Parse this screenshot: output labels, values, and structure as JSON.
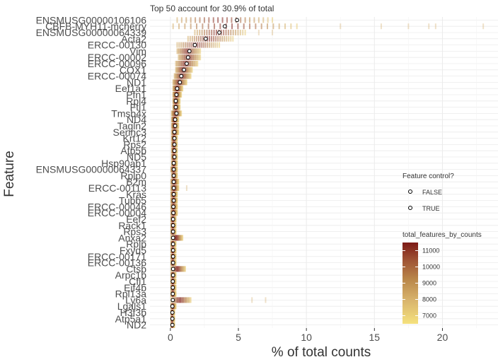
{
  "chart_data": {
    "type": "scatter",
    "title": "Top 50 account for 30.9% of total",
    "xlabel": "% of total counts",
    "ylabel": "Feature",
    "xlim": [
      -1.5,
      24.5
    ],
    "xticks": [
      0,
      5,
      10,
      15,
      20
    ],
    "grid": true,
    "features": [
      {
        "name": "ENSMUSG00000106106",
        "mean": 4.9,
        "range": [
          0.5,
          7.5
        ],
        "tail": []
      },
      {
        "name": "CBFB-MYH11-mcherry",
        "mean": 4.0,
        "range": [
          0.2,
          9.3
        ],
        "tail": [
          12.5,
          15.5,
          17.5,
          19.0,
          19.5,
          23.0
        ]
      },
      {
        "name": "ENSMUSG00000064339",
        "mean": 3.6,
        "range": [
          1.8,
          5.5
        ],
        "tail": [
          6.5,
          7.5
        ]
      },
      {
        "name": "Acta2",
        "mean": 2.6,
        "range": [
          1.3,
          4.6
        ],
        "tail": []
      },
      {
        "name": "ERCC-00130",
        "mean": 1.8,
        "range": [
          0.5,
          3.6
        ],
        "tail": []
      },
      {
        "name": "Vim",
        "mean": 1.4,
        "range": [
          0.5,
          2.2
        ],
        "tail": []
      },
      {
        "name": "ERCC-00002",
        "mean": 1.3,
        "range": [
          0.6,
          2.2
        ],
        "tail": []
      },
      {
        "name": "ERCC-00096",
        "mean": 1.2,
        "range": [
          0.4,
          2.0
        ],
        "tail": []
      },
      {
        "name": "COX1",
        "mean": 1.0,
        "range": [
          0.4,
          1.6
        ],
        "tail": []
      },
      {
        "name": "ERCC-00074",
        "mean": 0.8,
        "range": [
          0.3,
          1.5
        ],
        "tail": []
      },
      {
        "name": "ND1",
        "mean": 0.7,
        "range": [
          0.2,
          1.2
        ],
        "tail": []
      },
      {
        "name": "Eef1a1",
        "mean": 0.5,
        "range": [
          0.2,
          0.9
        ],
        "tail": []
      },
      {
        "name": "Pfn1",
        "mean": 0.45,
        "range": [
          0.2,
          0.8
        ],
        "tail": []
      },
      {
        "name": "Rpl4",
        "mean": 0.4,
        "range": [
          0.2,
          0.7
        ],
        "tail": []
      },
      {
        "name": "Ftl1",
        "mean": 0.4,
        "range": [
          0.2,
          0.7
        ],
        "tail": []
      },
      {
        "name": "Tmsb4x",
        "mean": 0.45,
        "range": [
          0.1,
          0.8
        ],
        "tail": []
      },
      {
        "name": "ND4",
        "mean": 0.35,
        "range": [
          0.1,
          0.6
        ],
        "tail": []
      },
      {
        "name": "Tagln2",
        "mean": 0.35,
        "range": [
          0.1,
          0.6
        ],
        "tail": []
      },
      {
        "name": "Serinc3",
        "mean": 0.3,
        "range": [
          0.1,
          0.6
        ],
        "tail": []
      },
      {
        "name": "Krt12",
        "mean": 0.3,
        "range": [
          0.1,
          0.5
        ],
        "tail": []
      },
      {
        "name": "Rps2",
        "mean": 0.3,
        "range": [
          0.1,
          0.5
        ],
        "tail": []
      },
      {
        "name": "Atp5b",
        "mean": 0.3,
        "range": [
          0.1,
          0.5
        ],
        "tail": []
      },
      {
        "name": "ND5",
        "mean": 0.3,
        "range": [
          0.1,
          0.5
        ],
        "tail": []
      },
      {
        "name": "Hsp90ab1",
        "mean": 0.25,
        "range": [
          0.1,
          0.5
        ],
        "tail": []
      },
      {
        "name": "ENSMUSG00000064337",
        "mean": 0.25,
        "range": [
          0.05,
          0.5
        ],
        "tail": []
      },
      {
        "name": "Rplp0",
        "mean": 0.25,
        "range": [
          0.1,
          0.5
        ],
        "tail": []
      },
      {
        "name": "B2m",
        "mean": 0.25,
        "range": [
          0.05,
          0.6
        ],
        "tail": []
      },
      {
        "name": "ERCC-00113",
        "mean": 0.25,
        "range": [
          0.05,
          0.6
        ],
        "tail": [
          1.2
        ]
      },
      {
        "name": "Kras",
        "mean": 0.25,
        "range": [
          0.05,
          0.5
        ],
        "tail": []
      },
      {
        "name": "Tubb5",
        "mean": 0.25,
        "range": [
          0.05,
          0.5
        ],
        "tail": []
      },
      {
        "name": "ERCC-00046",
        "mean": 0.22,
        "range": [
          0.05,
          0.5
        ],
        "tail": []
      },
      {
        "name": "ERCC-00004",
        "mean": 0.22,
        "range": [
          0.05,
          0.5
        ],
        "tail": []
      },
      {
        "name": "Eef2",
        "mean": 0.2,
        "range": [
          0.05,
          0.4
        ],
        "tail": []
      },
      {
        "name": "Rack1",
        "mean": 0.2,
        "range": [
          0.05,
          0.4
        ],
        "tail": []
      },
      {
        "name": "Rps3",
        "mean": 0.2,
        "range": [
          0.05,
          0.4
        ],
        "tail": []
      },
      {
        "name": "Anxa2",
        "mean": 0.2,
        "range": [
          0.05,
          0.9
        ],
        "tail": []
      },
      {
        "name": "Rplp",
        "mean": 0.2,
        "range": [
          0.05,
          0.4
        ],
        "tail": []
      },
      {
        "name": "Fxyd5",
        "mean": 0.2,
        "range": [
          0.05,
          0.4
        ],
        "tail": []
      },
      {
        "name": "ERCC-00171",
        "mean": 0.2,
        "range": [
          0.05,
          0.4
        ],
        "tail": []
      },
      {
        "name": "ERCC-00136",
        "mean": 0.2,
        "range": [
          0.05,
          0.4
        ],
        "tail": []
      },
      {
        "name": "Ctsb",
        "mean": 0.2,
        "range": [
          0.05,
          1.1
        ],
        "tail": []
      },
      {
        "name": "Arpc1b",
        "mean": 0.2,
        "range": [
          0.05,
          0.4
        ],
        "tail": []
      },
      {
        "name": "Cfl1",
        "mean": 0.18,
        "range": [
          0.05,
          0.4
        ],
        "tail": []
      },
      {
        "name": "Eif4b",
        "mean": 0.18,
        "range": [
          0.05,
          0.4
        ],
        "tail": []
      },
      {
        "name": "Rpl13a",
        "mean": 0.18,
        "range": [
          0.05,
          0.4
        ],
        "tail": []
      },
      {
        "name": "Ly6a",
        "mean": 0.18,
        "range": [
          0.05,
          1.5
        ],
        "tail": [
          6.0,
          7.0
        ]
      },
      {
        "name": "Lgals1",
        "mean": 0.15,
        "range": [
          0.05,
          0.4
        ],
        "tail": []
      },
      {
        "name": "H3f3b",
        "mean": 0.15,
        "range": [
          0.05,
          0.3
        ],
        "tail": []
      },
      {
        "name": "Atp5a1",
        "mean": 0.15,
        "range": [
          0.05,
          0.3
        ],
        "tail": []
      },
      {
        "name": "ND2",
        "mean": 0.15,
        "range": [
          0.05,
          0.3
        ],
        "tail": []
      }
    ],
    "legend_shape": {
      "title": "Feature control?",
      "entries": [
        "FALSE",
        "TRUE"
      ],
      "placement": "right"
    },
    "legend_color": {
      "title": "total_features_by_counts",
      "ticks": [
        7000,
        8000,
        9000,
        10000,
        11000
      ],
      "min": 6500,
      "max": 11500,
      "colors": [
        "#f5e17d",
        "#d7b26b",
        "#b98649",
        "#9c4f33",
        "#7d1a16"
      ],
      "placement": "right"
    }
  }
}
